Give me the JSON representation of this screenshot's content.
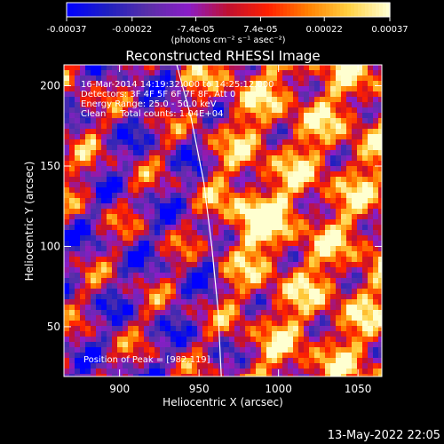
{
  "chart_data": {
    "type": "heatmap",
    "title": "Reconstructed RHESSI Image",
    "xlabel": "Heliocentric X (arcsec)",
    "ylabel": "Heliocentric Y (arcsec)",
    "xlim": [
      865,
      1065
    ],
    "ylim": [
      19,
      213
    ],
    "x_ticks": [
      900,
      950,
      1000,
      1050
    ],
    "y_ticks": [
      50,
      100,
      150,
      200
    ],
    "colorbar": {
      "range": [
        -0.00037,
        0.00037
      ],
      "tick_values": [
        -0.00037,
        -0.00022,
        -7.4e-05,
        7.4e-05,
        0.00022,
        0.00037
      ],
      "tick_labels": [
        "-0.00037",
        "-0.00022",
        "-7.4e-05",
        "7.4e-05",
        "0.00022",
        "0.00037"
      ],
      "unit_label": "(photons cm⁻² s⁻¹ asec⁻²)"
    },
    "info_lines": [
      "16-Mar-2014 14:19:32.000 to 14:25:12.000",
      "Detectors: 3F 4F 5F 6F 7F 8F, Att 0",
      "Energy Range: 25.0 - 50.0 keV",
      "Clean     Total counts: 1.04E+04"
    ],
    "peak_label": "Position of Peak = [982,119]",
    "peak": [
      982,
      119
    ],
    "limb_points": [
      [
        936,
        213
      ],
      [
        945,
        180
      ],
      [
        953,
        140
      ],
      [
        958,
        100
      ],
      [
        962,
        60
      ],
      [
        964,
        19
      ]
    ],
    "grid": false,
    "colors": {
      "background": "#000000",
      "text": "#ffffff",
      "colormap": [
        "#0000ff",
        "#2020c0",
        "#5a2fa8",
        "#8a1cc8",
        "#c01030",
        "#ff2000",
        "#ff8000",
        "#ffd040",
        "#ffffd0"
      ]
    }
  },
  "footer_timestamp": "13-May-2022 22:05"
}
